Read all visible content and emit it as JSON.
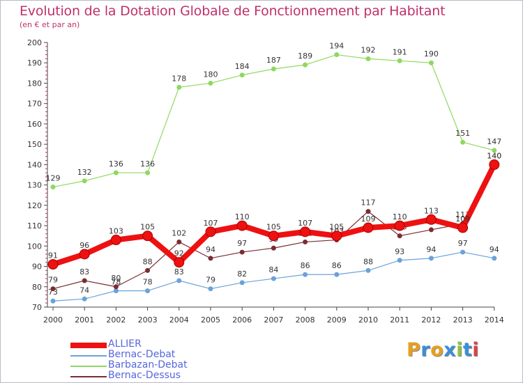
{
  "title": "Evolution de la Dotation Globale de Fonctionnement par Habitant",
  "subtitle": "(en € et par an)",
  "brand": {
    "letters": [
      "P",
      "r",
      "o",
      "x",
      "i",
      "t",
      "i"
    ],
    "colors": [
      "#e8a020",
      "#3a8fd8",
      "#e8a020",
      "#3a8fd8",
      "#8cc43c",
      "#3a8fd8",
      "#e04040"
    ]
  },
  "chart_data": {
    "type": "line",
    "title": "Evolution de la Dotation Globale de Fonctionnement par Habitant",
    "subtitle": "(en € et par an)",
    "xlabel": "",
    "ylabel": "",
    "ylim": [
      70,
      200
    ],
    "yticks": [
      70,
      80,
      90,
      100,
      110,
      120,
      130,
      140,
      150,
      160,
      170,
      180,
      190,
      200
    ],
    "grid": false,
    "legend_position": "bottom-left",
    "categories": [
      "2000",
      "2001",
      "2002",
      "2003",
      "2004",
      "2005",
      "2006",
      "2007",
      "2008",
      "2009",
      "2010",
      "2011",
      "2012",
      "2013",
      "2014"
    ],
    "series": [
      {
        "name": "Barbazan-Debat",
        "color": "#8fd860",
        "width": 1.2,
        "marker": 3.5,
        "values": [
          129,
          132,
          136,
          136,
          178,
          180,
          184,
          187,
          189,
          194,
          192,
          191,
          190,
          151,
          147
        ]
      },
      {
        "name": "Bernac-Debat",
        "color": "#6aa2d8",
        "width": 1.2,
        "marker": 3.5,
        "values": [
          73,
          74,
          78,
          78,
          83,
          79,
          82,
          84,
          86,
          86,
          88,
          93,
          94,
          97,
          94
        ]
      },
      {
        "name": "Bernac-Dessus",
        "color": "#7a2c32",
        "width": 1.2,
        "marker": 3.5,
        "values": [
          79,
          83,
          80,
          88,
          102,
          94,
          97,
          99,
          102,
          103,
          117,
          105,
          108,
          111,
          140
        ]
      },
      {
        "name": "ALLIER",
        "color": "#ee1111",
        "width": 8,
        "marker": 7,
        "values": [
          91,
          96,
          103,
          105,
          92,
          107,
          110,
          105,
          107,
          105,
          109,
          110,
          113,
          109,
          140
        ]
      }
    ],
    "legend": [
      "ALLIER",
      "Bernac-Debat",
      "Barbazan-Debat",
      "Bernac-Dessus"
    ]
  }
}
